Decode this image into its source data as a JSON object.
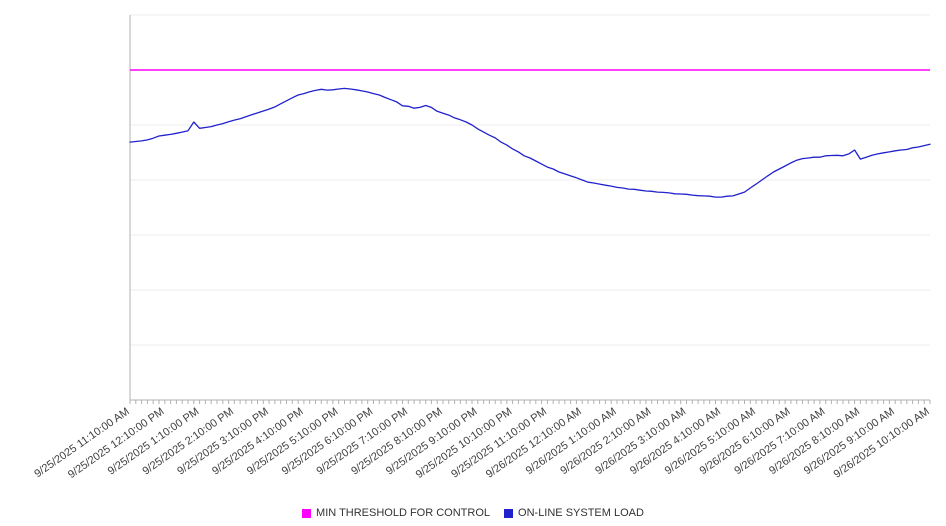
{
  "chart_data": {
    "type": "line",
    "title": "",
    "xlabel": "",
    "ylabel": "",
    "grid": "horizontal",
    "legend_position": "bottom-center",
    "y_axis_labels_visible": false,
    "ylim": [
      0,
      7000
    ],
    "y_gridline_step": 1000,
    "points_per_label": 6,
    "x_labels": [
      "9/25/2025 11:10:00 AM",
      "9/25/2025 12:10:00 PM",
      "9/25/2025 1:10:00 PM",
      "9/25/2025 2:10:00 PM",
      "9/25/2025 3:10:00 PM",
      "9/25/2025 4:10:00 PM",
      "9/25/2025 5:10:00 PM",
      "9/25/2025 6:10:00 PM",
      "9/25/2025 7:10:00 PM",
      "9/25/2025 8:10:00 PM",
      "9/25/2025 9:10:00 PM",
      "9/25/2025 10:10:00 PM",
      "9/25/2025 11:10:00 PM",
      "9/26/2025 12:10:00 AM",
      "9/26/2025 1:10:00 AM",
      "9/26/2025 2:10:00 AM",
      "9/26/2025 3:10:00 AM",
      "9/26/2025 4:10:00 AM",
      "9/26/2025 5:10:00 AM",
      "9/26/2025 6:10:00 AM",
      "9/26/2025 7:10:00 AM",
      "9/26/2025 8:10:00 AM",
      "9/26/2025 9:10:00 AM",
      "9/26/2025 10:10:00 AM"
    ],
    "colors": {
      "grid": "#ececec",
      "axis": "#b0b0b0",
      "label": "#404040"
    },
    "series": [
      {
        "name": "MIN THRESHOLD FOR CONTROL",
        "type": "constant",
        "value": 6000,
        "color": "#ff00ff"
      },
      {
        "name": "ON-LINE SYSTEM LOAD",
        "type": "line",
        "color": "#2222cc",
        "values": [
          4690,
          4700,
          4710,
          4730,
          4760,
          4800,
          4815,
          4830,
          4850,
          4870,
          4895,
          5055,
          4940,
          4955,
          4970,
          5000,
          5025,
          5060,
          5090,
          5115,
          5150,
          5185,
          5220,
          5255,
          5290,
          5330,
          5385,
          5440,
          5495,
          5545,
          5570,
          5605,
          5630,
          5650,
          5635,
          5640,
          5655,
          5665,
          5655,
          5640,
          5620,
          5600,
          5570,
          5545,
          5500,
          5460,
          5420,
          5350,
          5340,
          5305,
          5320,
          5355,
          5320,
          5250,
          5215,
          5180,
          5130,
          5095,
          5055,
          5000,
          4930,
          4870,
          4815,
          4765,
          4690,
          4635,
          4565,
          4510,
          4440,
          4400,
          4345,
          4290,
          4235,
          4200,
          4145,
          4110,
          4075,
          4040,
          4000,
          3960,
          3945,
          3925,
          3905,
          3890,
          3865,
          3855,
          3835,
          3830,
          3815,
          3800,
          3795,
          3780,
          3775,
          3765,
          3750,
          3745,
          3740,
          3725,
          3715,
          3710,
          3705,
          3690,
          3690,
          3705,
          3710,
          3745,
          3780,
          3855,
          3925,
          4000,
          4075,
          4145,
          4200,
          4255,
          4310,
          4360,
          4390,
          4400,
          4415,
          4415,
          4440,
          4445,
          4450,
          4440,
          4475,
          4545,
          4380,
          4415,
          4450,
          4475,
          4495,
          4510,
          4530,
          4545,
          4555,
          4585,
          4600,
          4625,
          4650
        ]
      }
    ]
  }
}
